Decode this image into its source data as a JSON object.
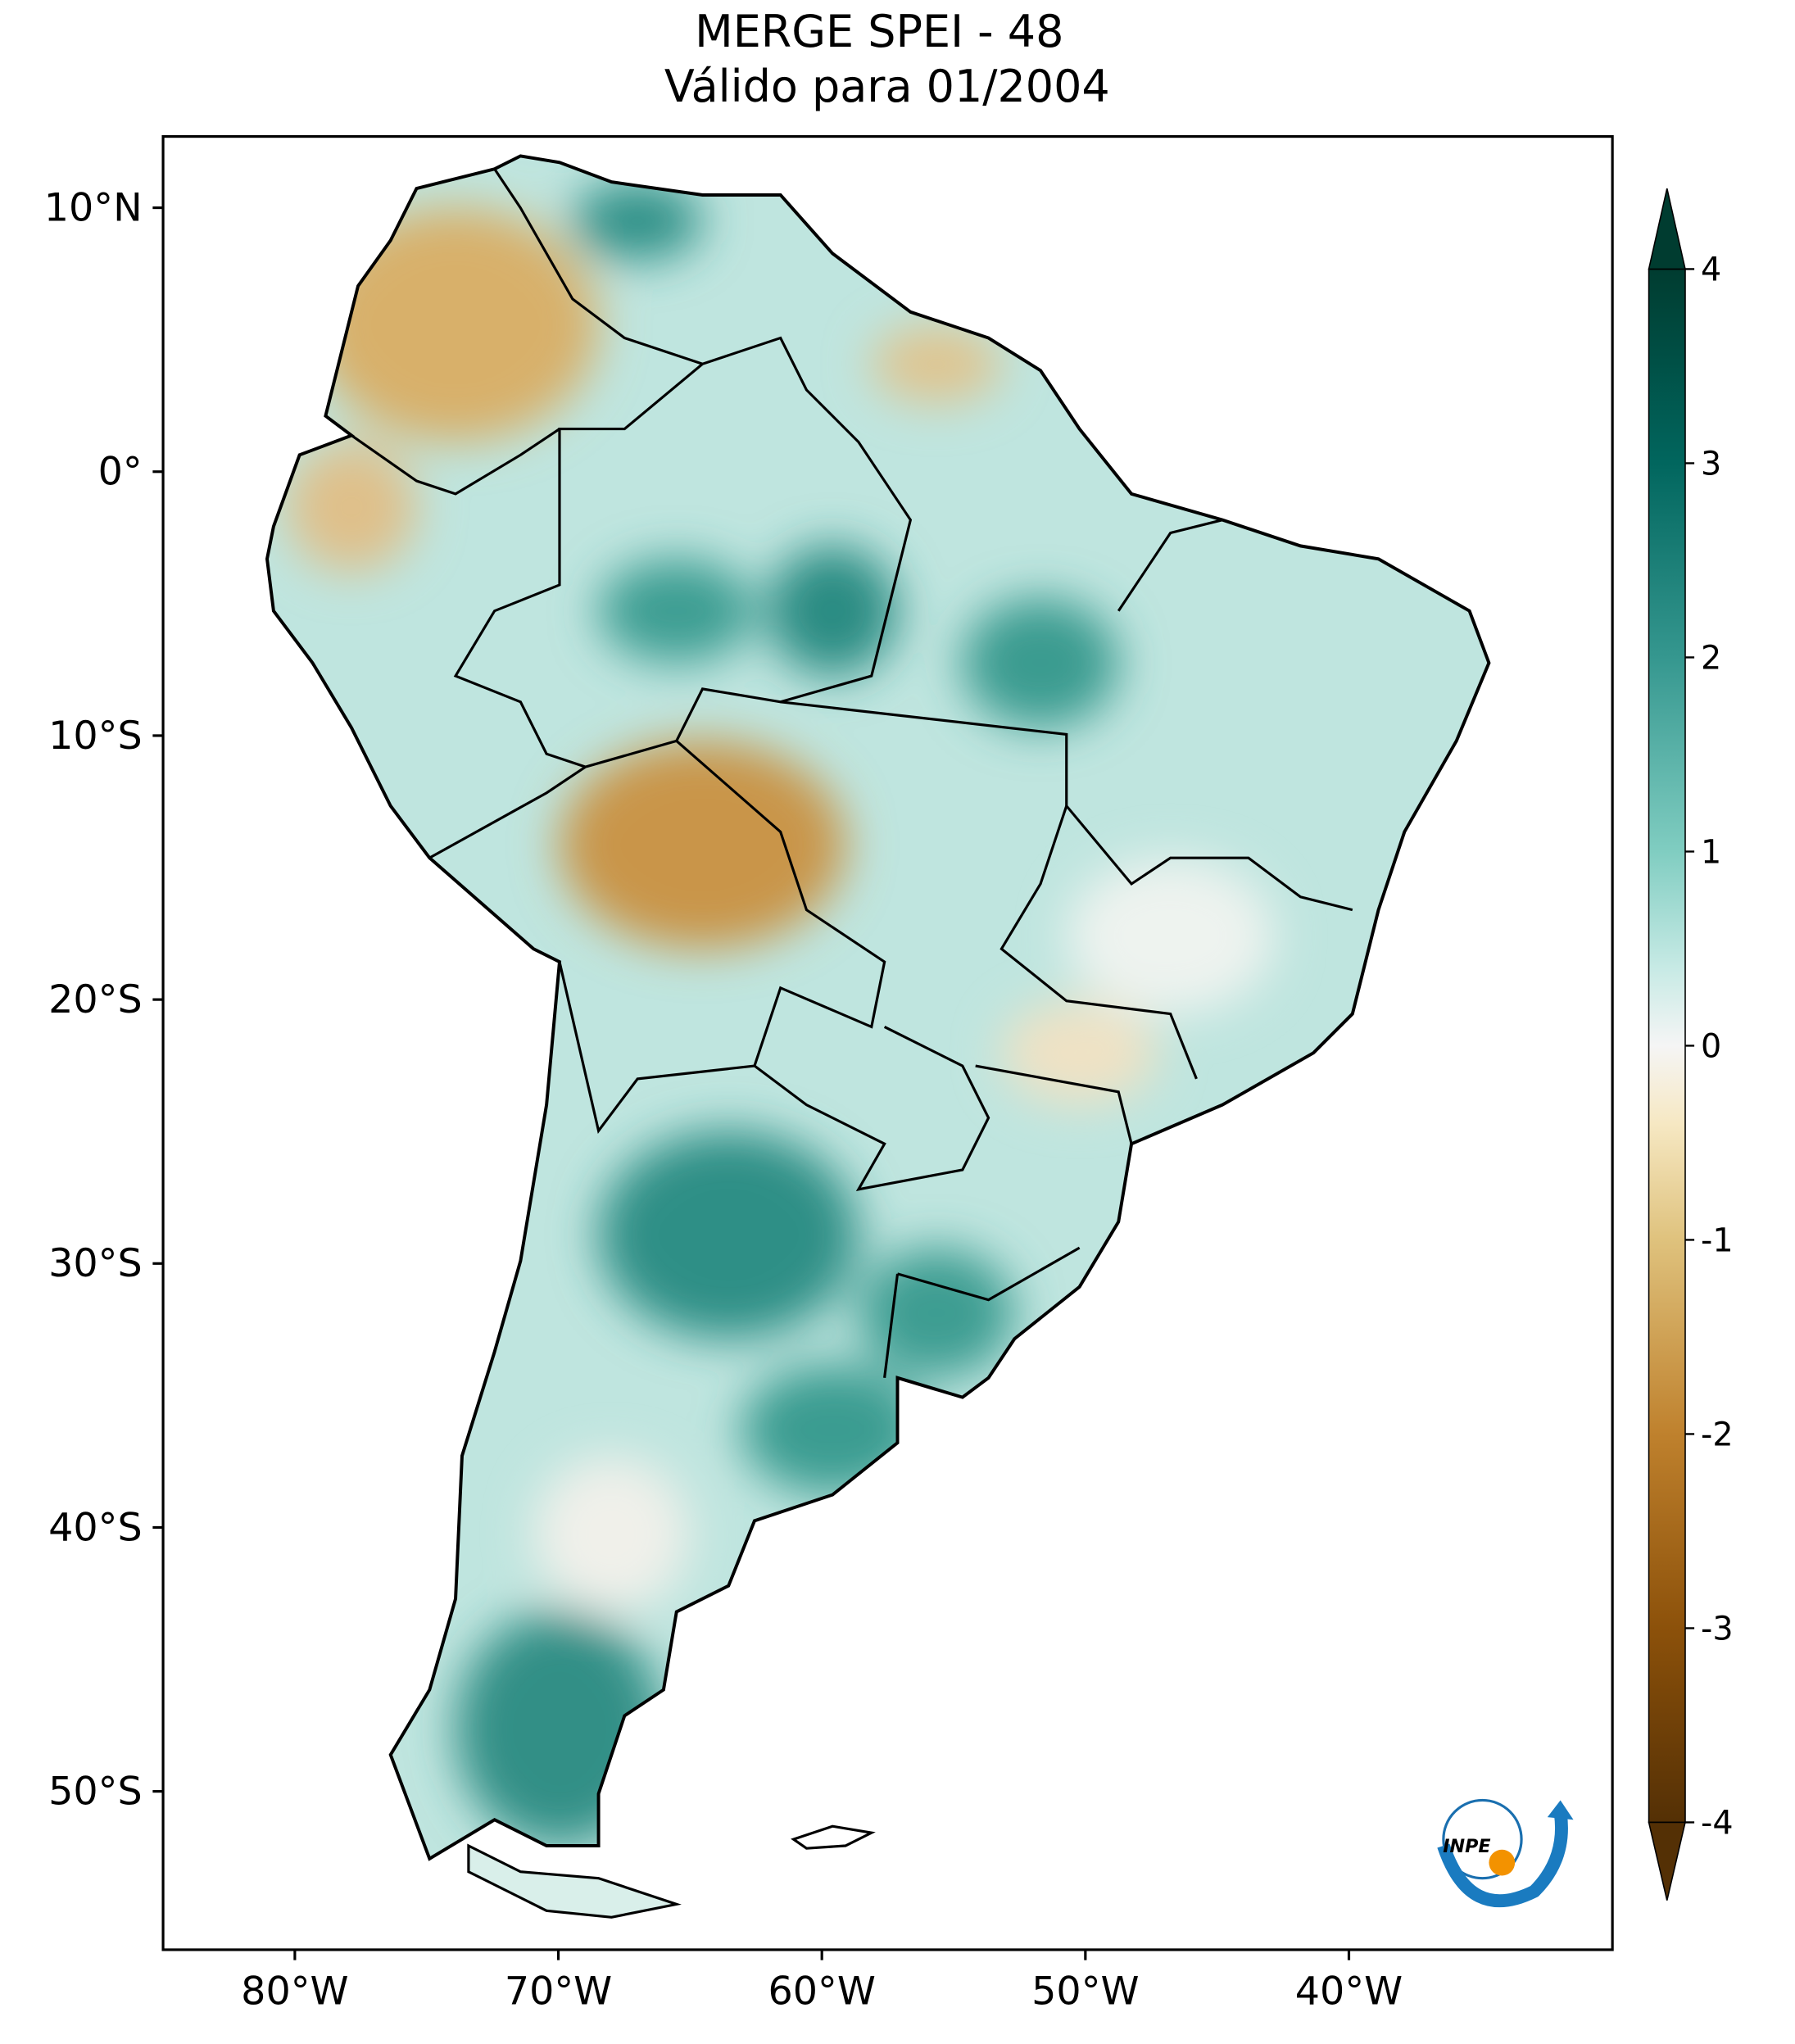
{
  "title": "MERGE   SPEI - 48",
  "subtitle": "Válido para 01/2004",
  "map": {
    "xlim": [
      -85,
      -30
    ],
    "ylim": [
      -56,
      12.7
    ],
    "xticks": [
      {
        "value": -80,
        "label": "80°W"
      },
      {
        "value": -70,
        "label": "70°W"
      },
      {
        "value": -60,
        "label": "60°W"
      },
      {
        "value": -50,
        "label": "50°W"
      },
      {
        "value": -40,
        "label": "40°W"
      }
    ],
    "yticks": [
      {
        "value": 10,
        "label": "10°N"
      },
      {
        "value": 0,
        "label": "0°"
      },
      {
        "value": -10,
        "label": "10°S"
      },
      {
        "value": -20,
        "label": "20°S"
      },
      {
        "value": -30,
        "label": "30°S"
      },
      {
        "value": -40,
        "label": "40°S"
      },
      {
        "value": -50,
        "label": "50°S"
      }
    ]
  },
  "colorbar": {
    "lim": [
      -4,
      4
    ],
    "ticks": [
      -4,
      -3,
      -2,
      -1,
      0,
      1,
      2,
      3,
      4
    ]
  },
  "logo": "INPE"
}
